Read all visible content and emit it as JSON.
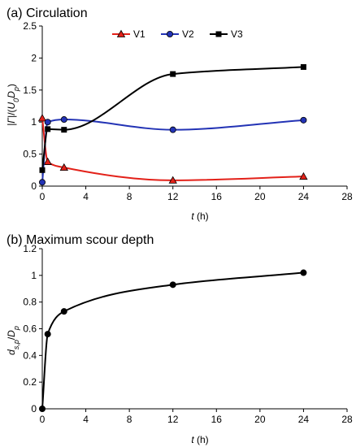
{
  "chart_data": [
    {
      "type": "line",
      "title": "(a) Circulation",
      "xlabel_var": "t",
      "xlabel_unit": " (h)",
      "ylabel": "|Γ|/(U0Dp)",
      "xlim": [
        0,
        28
      ],
      "ylim": [
        0,
        2.5
      ],
      "xticks": [
        0,
        4,
        8,
        12,
        16,
        20,
        24,
        28
      ],
      "yticks": [
        0,
        0.5,
        1,
        1.5,
        2,
        2.5
      ],
      "legend": "top-center",
      "series": [
        {
          "name": "V1",
          "color": "#e32119",
          "marker": "triangle",
          "x": [
            0,
            0.5,
            2,
            12,
            24
          ],
          "y": [
            1.06,
            0.38,
            0.29,
            0.09,
            0.15
          ]
        },
        {
          "name": "V2",
          "color": "#2333b5",
          "marker": "circle",
          "x": [
            0,
            0.5,
            2,
            12,
            24
          ],
          "y": [
            0.06,
            1.0,
            1.04,
            0.88,
            1.03
          ]
        },
        {
          "name": "V3",
          "color": "#000000",
          "marker": "square",
          "x": [
            0,
            0.5,
            2,
            12,
            24
          ],
          "y": [
            0.25,
            0.89,
            0.88,
            1.75,
            1.86
          ]
        }
      ]
    },
    {
      "type": "line",
      "title": "(b) Maximum scour depth",
      "xlabel_var": "t",
      "xlabel_unit": " (h)",
      "ylabel": "ds,p/Dp",
      "xlim": [
        0,
        28
      ],
      "ylim": [
        0,
        1.2
      ],
      "xticks": [
        0,
        4,
        8,
        12,
        16,
        20,
        24,
        28
      ],
      "yticks": [
        0,
        0.2,
        0.4,
        0.6,
        0.8,
        1,
        1.2
      ],
      "series": [
        {
          "color": "#000000",
          "marker": "circle",
          "x": [
            0,
            0.5,
            2,
            12,
            24
          ],
          "y": [
            0,
            0.56,
            0.73,
            0.93,
            1.02
          ]
        }
      ]
    }
  ]
}
